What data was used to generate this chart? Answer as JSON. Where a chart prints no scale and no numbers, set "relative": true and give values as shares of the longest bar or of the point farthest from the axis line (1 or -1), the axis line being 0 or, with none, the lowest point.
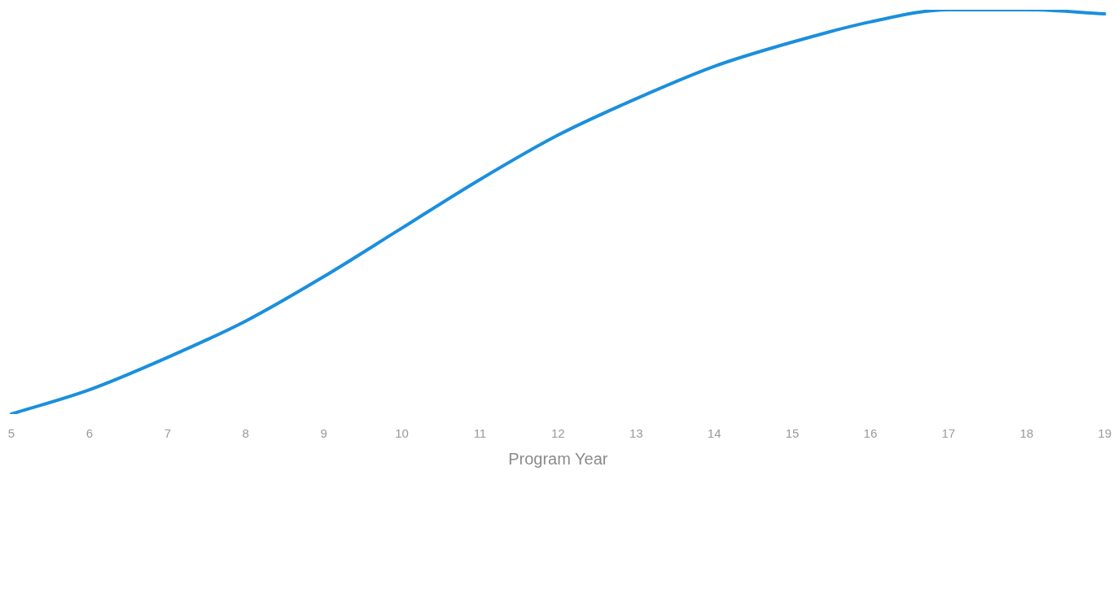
{
  "chart_data": {
    "type": "line",
    "xlabel": "Program Year",
    "relative": true,
    "categories": [
      "5",
      "6",
      "7",
      "8",
      "9",
      "10",
      "11",
      "12",
      "13",
      "14",
      "15",
      "16",
      "17",
      "18",
      "19"
    ],
    "series": [
      {
        "color": "#1b8fdd",
        "values": [
          0,
          0.06,
          0.14,
          0.23,
          0.34,
          0.46,
          0.58,
          0.69,
          0.78,
          0.86,
          0.92,
          0.97,
          1.0,
          1.0,
          0.99
        ]
      }
    ],
    "grid": false,
    "legend": false,
    "marker": "none",
    "line_style": "solid"
  }
}
